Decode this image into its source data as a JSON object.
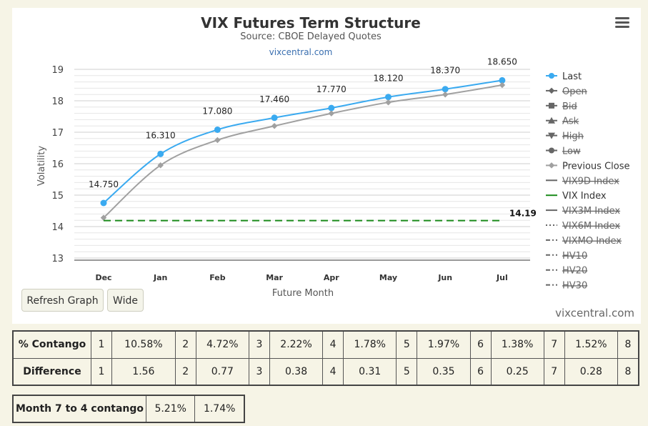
{
  "chart_data": {
    "type": "line",
    "title": "VIX Futures Term Structure",
    "subtitle": "Source: CBOE Delayed Quotes",
    "credit_link": "vixcentral.com",
    "xlabel": "Future Month",
    "ylabel": "Volatility",
    "categories": [
      "Dec",
      "Jan",
      "Feb",
      "Mar",
      "Apr",
      "May",
      "Jun",
      "Jul"
    ],
    "ylim": [
      13,
      19
    ],
    "yticks": [
      13,
      14,
      15,
      16,
      17,
      18,
      19
    ],
    "grid": true,
    "legend_position": "right",
    "series": [
      {
        "name": "Last",
        "values": [
          14.75,
          16.31,
          17.08,
          17.46,
          17.77,
          18.12,
          18.37,
          18.65
        ],
        "labels": [
          "14.750",
          "16.310",
          "17.080",
          "17.460",
          "17.770",
          "18.120",
          "18.370",
          "18.650"
        ],
        "color": "#3aaaf0",
        "visible": true
      },
      {
        "name": "Previous Close",
        "values": [
          14.28,
          15.95,
          16.75,
          17.2,
          17.6,
          17.95,
          18.2,
          18.5
        ],
        "color": "#a0a0a0",
        "visible": true
      },
      {
        "name": "VIX Index",
        "values": [
          14.19,
          14.19,
          14.19,
          14.19,
          14.19,
          14.19,
          14.19,
          14.19
        ],
        "end_label": "14.19",
        "color": "#1a8a1a",
        "dashed": true,
        "visible": true
      }
    ],
    "legend": [
      {
        "name": "Last",
        "marker": "circle",
        "line": "solid",
        "color": "#3aaaf0",
        "disabled": false
      },
      {
        "name": "Open",
        "marker": "diamond",
        "line": "solid",
        "color": "#555555",
        "disabled": true
      },
      {
        "name": "Bid",
        "marker": "square",
        "line": "solid",
        "color": "#555555",
        "disabled": true
      },
      {
        "name": "Ask",
        "marker": "triangle",
        "line": "solid",
        "color": "#555555",
        "disabled": true
      },
      {
        "name": "High",
        "marker": "triangle-down",
        "line": "solid",
        "color": "#555555",
        "disabled": true
      },
      {
        "name": "Low",
        "marker": "circle",
        "line": "solid",
        "color": "#555555",
        "disabled": true
      },
      {
        "name": "Previous Close",
        "marker": "diamond",
        "line": "solid",
        "color": "#a0a0a0",
        "disabled": false
      },
      {
        "name": "VIX9D Index",
        "marker": "none",
        "line": "solid",
        "color": "#555555",
        "disabled": true
      },
      {
        "name": "VIX Index",
        "marker": "none",
        "line": "solid",
        "color": "#1a8a1a",
        "disabled": false
      },
      {
        "name": "VIX3M Index",
        "marker": "none",
        "line": "solid",
        "color": "#555555",
        "disabled": true
      },
      {
        "name": "VIX6M Index",
        "marker": "none",
        "line": "dotted",
        "color": "#555555",
        "disabled": true
      },
      {
        "name": "VIXMO Index",
        "marker": "none",
        "line": "dashdot",
        "color": "#555555",
        "disabled": true
      },
      {
        "name": "HV10",
        "marker": "none",
        "line": "dashdot",
        "color": "#555555",
        "disabled": true
      },
      {
        "name": "HV20",
        "marker": "none",
        "line": "dashdot",
        "color": "#555555",
        "disabled": true
      },
      {
        "name": "HV30",
        "marker": "none",
        "line": "dashdot",
        "color": "#555555",
        "disabled": true
      }
    ]
  },
  "buttons": {
    "refresh": "Refresh Graph",
    "wide": "Wide"
  },
  "watermark": "vixcentral.com",
  "contango_table": {
    "rows": [
      {
        "label": "% Contango",
        "cells": [
          [
            "1",
            "10.58%"
          ],
          [
            "2",
            "4.72%"
          ],
          [
            "3",
            "2.22%"
          ],
          [
            "4",
            "1.78%"
          ],
          [
            "5",
            "1.97%"
          ],
          [
            "6",
            "1.38%"
          ],
          [
            "7",
            "1.52%"
          ]
        ],
        "tail": "8"
      },
      {
        "label": "Difference",
        "cells": [
          [
            "1",
            "1.56"
          ],
          [
            "2",
            "0.77"
          ],
          [
            "3",
            "0.38"
          ],
          [
            "4",
            "0.31"
          ],
          [
            "5",
            "0.35"
          ],
          [
            "6",
            "0.25"
          ],
          [
            "7",
            "0.28"
          ]
        ],
        "tail": "8"
      }
    ]
  },
  "month_table": {
    "label": "Month 7 to 4 contango",
    "v1": "5.21%",
    "v2": "1.74%"
  }
}
